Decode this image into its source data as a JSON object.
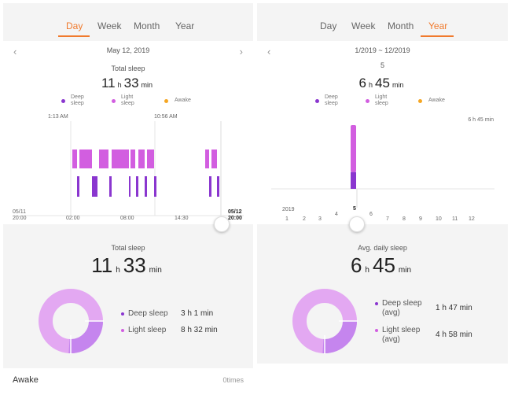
{
  "colors": {
    "deep": "#8a36cf",
    "light": "#d25ee0",
    "awake": "#f5a623",
    "accent": "#f07a2d",
    "donut_light": "#e3a8f2",
    "donut_deep": "#c585ee"
  },
  "left": {
    "tabs": [
      "Day",
      "Week",
      "Month",
      "Year"
    ],
    "active_tab": "Day",
    "date": "May 12, 2019",
    "summary_label": "Total sleep",
    "hours": "11",
    "h_unit": "h",
    "minutes": "33",
    "min_unit": "min",
    "legend": {
      "deep": [
        "Deep",
        "sleep"
      ],
      "light": [
        "Light",
        "sleep"
      ],
      "awake": "Awake"
    },
    "time_markers": [
      "1:13 AM",
      "10:56 AM"
    ],
    "x_ticks": {
      "start": [
        "05/11",
        "20:00"
      ],
      "t1": "02:00",
      "t2": "08:00",
      "t3": "14:30",
      "end": [
        "05/12",
        "20:00"
      ]
    },
    "detail_title": "Total sleep",
    "breakdown": [
      {
        "label": "Deep sleep",
        "value": "3 h 1 min"
      },
      {
        "label": "Light sleep",
        "value": "8 h 32 min"
      }
    ],
    "donut_deep_fraction": 0.26,
    "awake_label": "Awake",
    "awake_value": "0times"
  },
  "right": {
    "tabs": [
      "Day",
      "Week",
      "Month",
      "Year"
    ],
    "active_tab": "Year",
    "range": "1/2019 ~ 12/2019",
    "selected_month": "5",
    "hours": "6",
    "h_unit": "h",
    "minutes": "45",
    "min_unit": "min",
    "legend": {
      "deep": [
        "Deep",
        "sleep"
      ],
      "light": [
        "Light",
        "sleep"
      ],
      "awake": "Awake"
    },
    "max_label": "6 h 45 min",
    "year_label": "2019",
    "months": [
      "1",
      "2",
      "3",
      "4",
      "5",
      "6",
      "7",
      "8",
      "9",
      "10",
      "11",
      "12"
    ],
    "detail_title": "Avg. daily sleep",
    "breakdown": [
      {
        "label": [
          "Deep sleep",
          "(avg)"
        ],
        "value": "1 h 47 min"
      },
      {
        "label": [
          "Light sleep",
          "(avg)"
        ],
        "value": "4 h 58 min"
      }
    ],
    "donut_deep_fraction": 0.26
  },
  "chart_data": [
    {
      "type": "bar",
      "title": "Total sleep",
      "x_range": [
        "05/11 20:00",
        "05/12 20:00"
      ],
      "x_ticks": [
        "05/11 20:00",
        "02:00",
        "08:00",
        "14:30",
        "05/12 20:00"
      ],
      "series": [
        {
          "name": "Deep sleep",
          "total": "3 h 1 min"
        },
        {
          "name": "Light sleep",
          "total": "8 h 32 min"
        },
        {
          "name": "Awake"
        }
      ]
    },
    {
      "type": "bar",
      "title": "Avg. daily sleep",
      "categories": [
        "1",
        "2",
        "3",
        "4",
        "5",
        "6",
        "7",
        "8",
        "9",
        "10",
        "11",
        "12"
      ],
      "series": [
        {
          "name": "Deep sleep",
          "values": [
            0,
            0,
            0,
            0,
            107,
            0,
            0,
            0,
            0,
            0,
            0,
            0
          ]
        },
        {
          "name": "Light sleep",
          "values": [
            0,
            0,
            0,
            0,
            298,
            0,
            0,
            0,
            0,
            0,
            0,
            0
          ]
        }
      ],
      "ylabel": "",
      "ylim": [
        0,
        405
      ],
      "max_label": "6 h 45 min"
    }
  ]
}
